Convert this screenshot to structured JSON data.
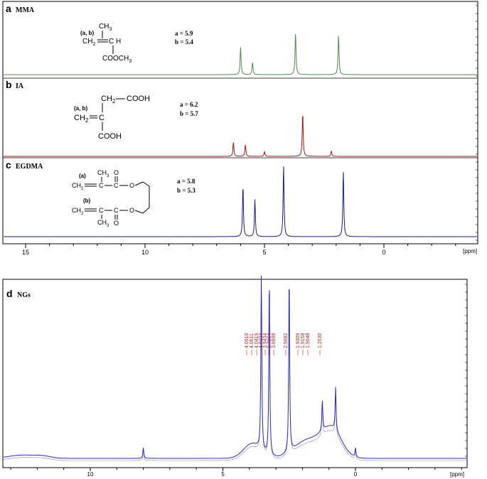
{
  "colors": {
    "mma": "#4f8a4f",
    "ia": "#a01818",
    "egdma": "#1a1a8a",
    "ngs": "#2b2bd0",
    "annot": "#d02020",
    "axis": "#000000"
  },
  "top_axis": {
    "ticks": [
      "15",
      "10",
      "5",
      "0"
    ],
    "unit": "[ppm]"
  },
  "bottom_axis": {
    "ticks": [
      "10",
      "5",
      "0"
    ],
    "unit": "[ppm]"
  },
  "panels": {
    "a": {
      "letter": "a",
      "name": "MMA",
      "shift_a": "a = 5.9",
      "shift_b": "b = 5.4",
      "structure": {
        "ab": "(a, b)",
        "ch3": "CH",
        "ch3_sub": "3",
        "ch2": "CH",
        "ch2_sub": "2",
        "ch": "C H",
        "ester": "COOCH",
        "ester_sub": "3"
      }
    },
    "b": {
      "letter": "b",
      "name": "IA",
      "shift_a": "a = 6.2",
      "shift_b": "b = 5.7",
      "structure": {
        "ab": "(a, b)",
        "ch2top": "CH",
        "ch2top_sub": "2",
        "cooh_top": "COOH",
        "ch2": "CH",
        "ch2_sub": "2",
        "c": "C",
        "cooh": "COOH"
      }
    },
    "c": {
      "letter": "c",
      "name": "EGDMA",
      "shift_a": "a = 5.8",
      "shift_b": "b = 5.3",
      "structure": {
        "a": "(a)",
        "b": "(b)",
        "ch2": "CH",
        "ch2_sub": "2",
        "ch3": "CH",
        "ch3_sub": "3",
        "c": "C",
        "o": "O"
      }
    },
    "d": {
      "letter": "d",
      "name": "NGs",
      "peak_labels": [
        "4.0910",
        "4.0611",
        "4.0419",
        "4.0223",
        "3.9434",
        "3.7964",
        "3.6998",
        "2.5682",
        "1.9309",
        "1.9158",
        "1.9048",
        "1.2530"
      ]
    }
  },
  "chart_data": [
    {
      "type": "line",
      "title": "MMA",
      "xlabel": "[ppm]",
      "xlim": [
        16,
        -3.5
      ],
      "peaks": [
        {
          "ppm": 6.0,
          "height": 0.62
        },
        {
          "ppm": 5.5,
          "height": 0.28
        },
        {
          "ppm": 3.7,
          "height": 0.95
        },
        {
          "ppm": 1.9,
          "height": 0.9
        }
      ]
    },
    {
      "type": "line",
      "title": "IA",
      "xlabel": "[ppm]",
      "xlim": [
        16,
        -3.5
      ],
      "peaks": [
        {
          "ppm": 6.3,
          "height": 0.32
        },
        {
          "ppm": 5.8,
          "height": 0.26
        },
        {
          "ppm": 5.0,
          "height": 0.1
        },
        {
          "ppm": 3.4,
          "height": 0.96
        },
        {
          "ppm": 2.2,
          "height": 0.12
        }
      ]
    },
    {
      "type": "line",
      "title": "EGDMA",
      "xlabel": "[ppm]",
      "xlim": [
        16,
        -3.5
      ],
      "peaks": [
        {
          "ppm": 5.9,
          "height": 0.72
        },
        {
          "ppm": 5.4,
          "height": 0.52
        },
        {
          "ppm": 4.2,
          "height": 1.0
        },
        {
          "ppm": 1.7,
          "height": 0.92
        }
      ]
    },
    {
      "type": "line",
      "title": "NGs",
      "xlabel": "[ppm]",
      "xlim": [
        13.5,
        -4
      ],
      "peaks": [
        {
          "ppm": 8.0,
          "height": 0.06
        },
        {
          "ppm": 3.55,
          "height": 1.0
        },
        {
          "ppm": 3.25,
          "height": 1.0
        },
        {
          "ppm": 2.5,
          "height": 1.0
        },
        {
          "ppm": 1.25,
          "height": 0.17
        },
        {
          "ppm": 0.75,
          "height": 0.24
        },
        {
          "ppm": 0.0,
          "height": 0.05
        }
      ]
    }
  ]
}
